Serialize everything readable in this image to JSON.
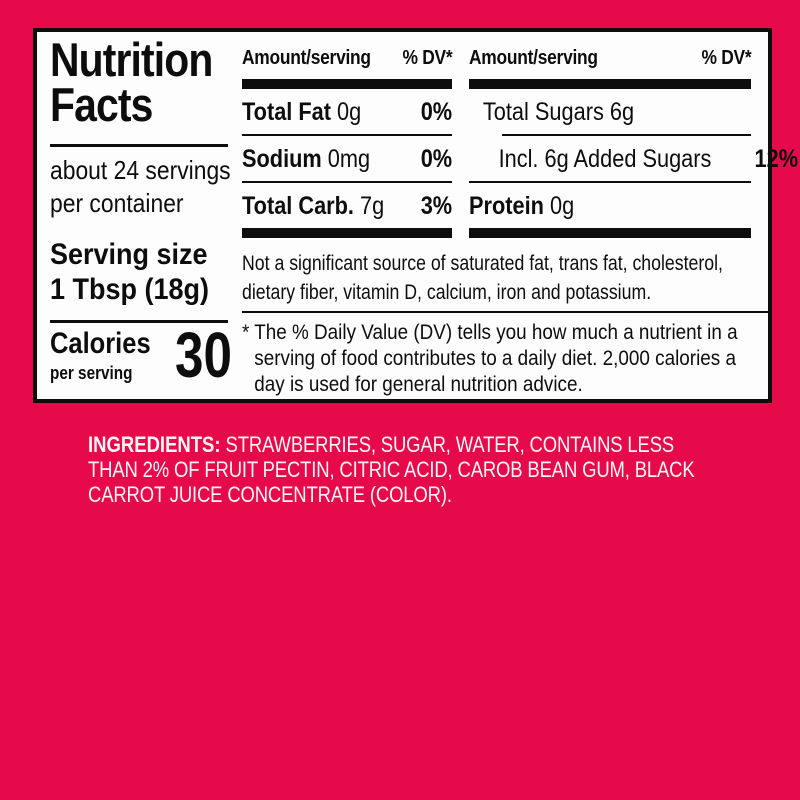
{
  "colors": {
    "background": "#e60a4a",
    "panel": "#fdfdfd",
    "ink": "#0d0d0d",
    "ingredients_text": "#fff6f6"
  },
  "label": {
    "title": "Nutrition Facts",
    "servings_per_container": "about 24 servings per container",
    "serving_size_label": "Serving size",
    "serving_size_value": "1 Tbsp (18g)",
    "calories_label": "Calories",
    "calories_sublabel": "per serving",
    "calories_value": "30",
    "columns": [
      {
        "header_amount": "Amount/serving",
        "header_dv": "% DV*",
        "rows": [
          {
            "name": "Total Fat",
            "amount": "0g",
            "dv": "0%"
          },
          {
            "name": "Sodium",
            "amount": "0mg",
            "dv": "0%"
          },
          {
            "name": "Total Carb.",
            "amount": "7g",
            "dv": "3%"
          }
        ]
      },
      {
        "header_amount": "Amount/serving",
        "header_dv": "% DV*",
        "rows": [
          {
            "name": "",
            "amount": "Total Sugars 6g",
            "dv": ""
          },
          {
            "name": "",
            "amount": "Incl. 6g Added Sugars",
            "dv": "12%"
          },
          {
            "name": "Protein",
            "amount": "0g",
            "dv": ""
          }
        ]
      }
    ],
    "not_significant_note": "Not a significant source of saturated fat, trans fat, cholesterol, dietary fiber, vitamin D, calcium, iron and potassium.",
    "dv_footnote": "* The % Daily Value (DV) tells you how much a nutrient in a serving of food contributes to a daily diet. 2,000 calories a day is used for general nutrition advice."
  },
  "ingredients": {
    "label": "INGREDIENTS:",
    "text": "STRAWBERRIES, SUGAR, WATER, CONTAINS LESS THAN 2% OF FRUIT PECTIN, CITRIC ACID, CAROB BEAN GUM, BLACK CARROT JUICE CONCENTRATE (COLOR)."
  }
}
